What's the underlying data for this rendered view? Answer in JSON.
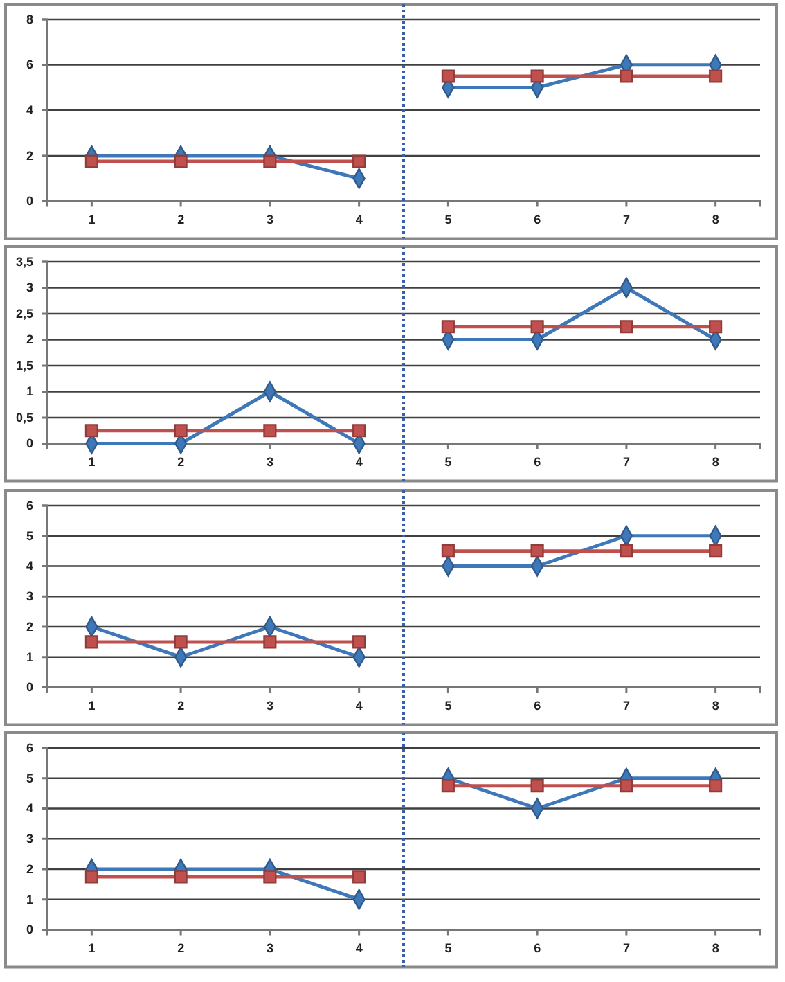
{
  "chart_data": [
    {
      "type": "line",
      "xlim": [
        0.5,
        8.5
      ],
      "xticks": [
        1,
        2,
        3,
        4,
        5,
        6,
        7,
        8
      ],
      "ylim": [
        0,
        8
      ],
      "yticks": [
        0,
        2,
        4,
        6,
        8
      ],
      "grid": "y",
      "line_style": "solid",
      "ref_lines": [
        {
          "axis": "x",
          "value": 4.5,
          "color": "#3a5fa8",
          "line_style": "dotted"
        }
      ],
      "series": [
        {
          "color": "#3f78b8",
          "marker": "diamond",
          "x": [
            1,
            2,
            3,
            4,
            4.5,
            5,
            6,
            7,
            8
          ],
          "values": [
            2,
            2,
            2,
            1,
            null,
            5,
            5,
            6,
            6
          ]
        },
        {
          "color": "#c0504d",
          "marker": "square",
          "x": [
            1,
            2,
            3,
            4,
            4.5,
            5,
            6,
            7,
            8
          ],
          "values": [
            1.75,
            1.75,
            1.75,
            1.75,
            null,
            5.5,
            5.5,
            5.5,
            5.5
          ]
        }
      ]
    },
    {
      "type": "line",
      "xlim": [
        0.5,
        8.5
      ],
      "xticks": [
        1,
        2,
        3,
        4,
        5,
        6,
        7,
        8
      ],
      "ylim": [
        0,
        3.5
      ],
      "yticks": [
        0,
        {
          "value": 0.5,
          "label": "0,5"
        },
        1,
        {
          "value": 1.5,
          "label": "1,5"
        },
        2,
        {
          "value": 2.5,
          "label": "2,5"
        },
        3,
        {
          "value": 3.5,
          "label": "3,5"
        }
      ],
      "grid": "y",
      "line_style": "solid",
      "ref_lines": [
        {
          "axis": "x",
          "value": 4.5,
          "color": "#3a5fa8",
          "line_style": "dotted"
        }
      ],
      "series": [
        {
          "color": "#3f78b8",
          "marker": "diamond",
          "x": [
            1,
            2,
            3,
            4,
            4.5,
            5,
            6,
            7,
            8
          ],
          "values": [
            0,
            0,
            1,
            0,
            null,
            2,
            2,
            3,
            2
          ]
        },
        {
          "color": "#c0504d",
          "marker": "square",
          "x": [
            1,
            2,
            3,
            4,
            4.5,
            5,
            6,
            7,
            8
          ],
          "values": [
            0.25,
            0.25,
            0.25,
            0.25,
            null,
            2.25,
            2.25,
            2.25,
            2.25
          ]
        }
      ]
    },
    {
      "type": "line",
      "xlim": [
        0.5,
        8.5
      ],
      "xticks": [
        1,
        2,
        3,
        4,
        5,
        6,
        7,
        8
      ],
      "ylim": [
        0,
        6
      ],
      "yticks": [
        0,
        1,
        2,
        3,
        4,
        5,
        6
      ],
      "grid": "y",
      "line_style": "solid",
      "ref_lines": [
        {
          "axis": "x",
          "value": 4.5,
          "color": "#3a5fa8",
          "line_style": "dotted"
        }
      ],
      "series": [
        {
          "color": "#3f78b8",
          "marker": "diamond",
          "x": [
            1,
            2,
            3,
            4,
            4.5,
            5,
            6,
            7,
            8
          ],
          "values": [
            2,
            1,
            2,
            1,
            null,
            4,
            4,
            5,
            5
          ]
        },
        {
          "color": "#c0504d",
          "marker": "square",
          "x": [
            1,
            2,
            3,
            4,
            4.5,
            5,
            6,
            7,
            8
          ],
          "values": [
            1.5,
            1.5,
            1.5,
            1.5,
            null,
            4.5,
            4.5,
            4.5,
            4.5
          ]
        }
      ]
    },
    {
      "type": "line",
      "xlim": [
        0.5,
        8.5
      ],
      "xticks": [
        1,
        2,
        3,
        4,
        5,
        6,
        7,
        8
      ],
      "ylim": [
        0,
        6
      ],
      "yticks": [
        0,
        1,
        2,
        3,
        4,
        5,
        6
      ],
      "grid": "y",
      "line_style": "solid",
      "ref_lines": [
        {
          "axis": "x",
          "value": 4.5,
          "color": "#3a5fa8",
          "line_style": "dotted"
        }
      ],
      "series": [
        {
          "color": "#3f78b8",
          "marker": "diamond",
          "x": [
            1,
            2,
            3,
            4,
            4.5,
            5,
            6,
            7,
            8
          ],
          "values": [
            2,
            2,
            2,
            1,
            null,
            5,
            4,
            5,
            5
          ]
        },
        {
          "color": "#c0504d",
          "marker": "square",
          "x": [
            1,
            2,
            3,
            4,
            4.5,
            5,
            6,
            7,
            8
          ],
          "values": [
            1.75,
            1.75,
            1.75,
            1.75,
            null,
            4.75,
            4.75,
            4.75,
            4.75
          ]
        }
      ]
    }
  ]
}
